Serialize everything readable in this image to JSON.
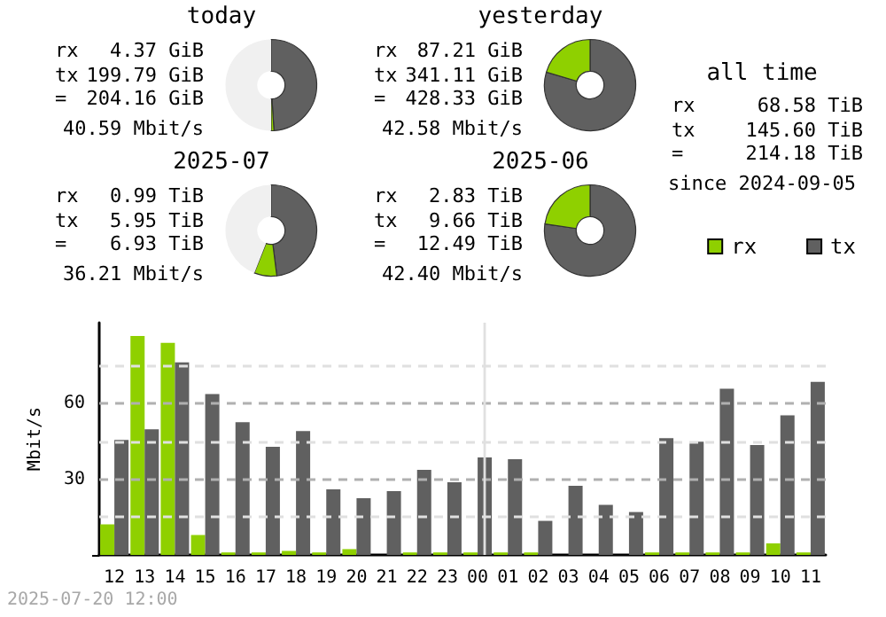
{
  "chart_data": [
    {
      "type": "donut",
      "title": "today",
      "categories": [
        null,
        null,
        null
      ],
      "values": [
        49,
        1,
        50
      ],
      "colors": [
        "#606060",
        "#8fd000",
        "#f0f0f0"
      ],
      "annotations": [
        "rx 4.37 GiB",
        "tx 199.79 GiB",
        "= 204.16 GiB",
        "40.59 Mbit/s"
      ]
    },
    {
      "type": "donut",
      "title": "yesterday",
      "categories": [
        null,
        null,
        null
      ],
      "values": [
        79.6,
        20.4,
        0
      ],
      "colors": [
        "#606060",
        "#8fd000",
        "#f0f0f0"
      ],
      "annotations": [
        "rx 87.21 GiB",
        "tx 341.11 GiB",
        "= 428.33 GiB",
        "42.58 Mbit/s"
      ]
    },
    {
      "type": "donut",
      "title": "2025-07",
      "categories": [
        null,
        null,
        null
      ],
      "values": [
        48,
        8,
        44
      ],
      "colors": [
        "#606060",
        "#8fd000",
        "#f0f0f0"
      ],
      "annotations": [
        "rx 0.99 TiB",
        "tx 5.95 TiB",
        "= 6.93 TiB",
        "36.21 Mbit/s"
      ]
    },
    {
      "type": "donut",
      "title": "2025-06",
      "categories": [
        null,
        null,
        null
      ],
      "values": [
        77.3,
        22.7,
        0
      ],
      "colors": [
        "#606060",
        "#8fd000",
        "#f0f0f0"
      ],
      "annotations": [
        "rx 2.83 TiB",
        "tx 9.66 TiB",
        "= 12.49 TiB",
        "42.40 Mbit/s"
      ]
    },
    {
      "type": "other",
      "title": "all time",
      "annotations": [
        "rx 68.58 TiB",
        "tx 145.60 TiB",
        "= 214.18 TiB",
        "since 2024-09-05"
      ]
    },
    {
      "type": "bar",
      "ylabel": "Mbit/s",
      "categories": [
        "12",
        "13",
        "14",
        "15",
        "16",
        "17",
        "18",
        "19",
        "20",
        "21",
        "22",
        "23",
        "00",
        "01",
        "02",
        "03",
        "04",
        "05",
        "06",
        "07",
        "08",
        "09",
        "10",
        "11"
      ],
      "series": [
        {
          "name": "rx",
          "color": "#8fd000",
          "values": [
            12.1,
            86.7,
            84,
            7.9,
            1,
            1,
            1.6,
            1,
            2.3,
            0,
            1,
            1,
            1,
            1,
            1,
            0,
            0,
            0,
            1,
            1,
            1,
            1,
            4.6,
            1
          ]
        },
        {
          "name": "tx",
          "color": "#606060",
          "values": [
            45.6,
            49.8,
            76.3,
            63.7,
            52.6,
            42.8,
            49.1,
            26,
            22.5,
            25.3,
            33.7,
            28.8,
            38.6,
            37.9,
            13.5,
            27.4,
            19.8,
            17,
            46.3,
            44.9,
            65.8,
            43.5,
            55.3,
            68.6
          ]
        }
      ],
      "ylim": [
        0,
        92
      ],
      "yticks": [
        {
          "value": 0,
          "label": null
        },
        {
          "value": 15,
          "label": null
        },
        30,
        {
          "value": 45,
          "label": null
        },
        60,
        {
          "value": 75,
          "label": null
        }
      ],
      "grid": "y",
      "legend": "top right",
      "ref_lines": [
        {
          "axis": "x",
          "value": "00",
          "color": "#e0e0e0"
        }
      ],
      "annotations": [
        "2025-07-20 12:00"
      ]
    }
  ]
}
